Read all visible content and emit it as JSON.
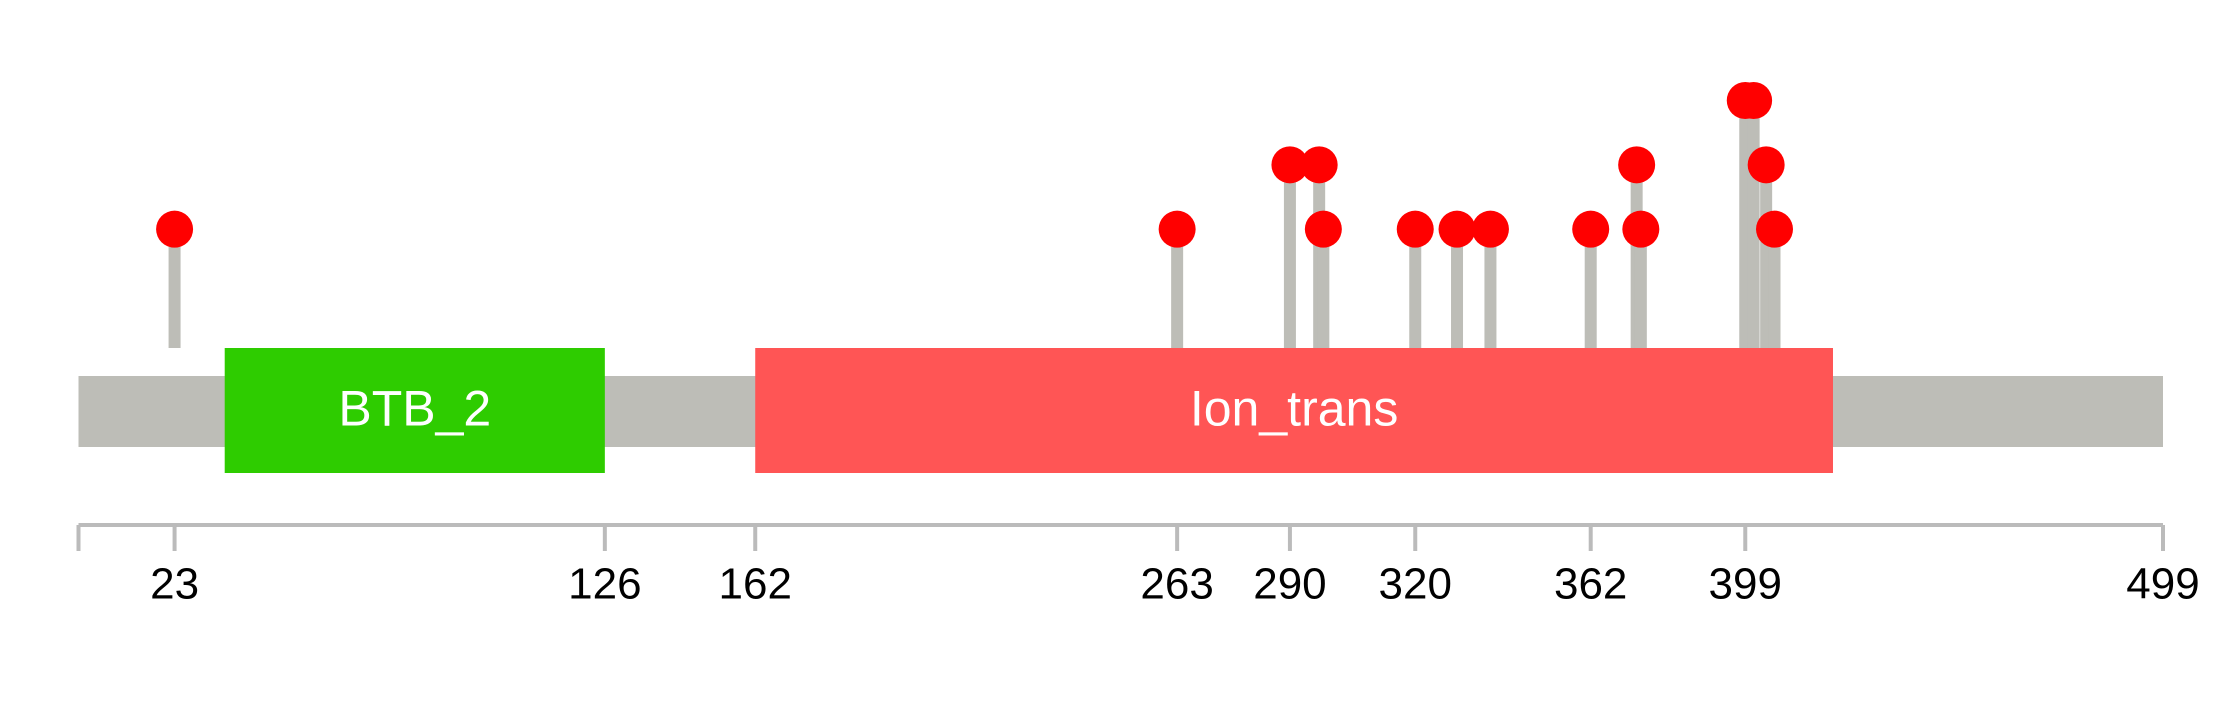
{
  "chart_data": {
    "type": "lollipop",
    "xlim": [
      0,
      499
    ],
    "xticks": [
      23,
      126,
      162,
      263,
      290,
      320,
      362,
      399,
      499
    ],
    "ylim": [
      0,
      3
    ],
    "backbone_color": "#bdbdb7",
    "domains": [
      {
        "name": "BTB_2",
        "start": 35,
        "end": 126,
        "color": "#2ecc00"
      },
      {
        "name": "Ion_trans",
        "start": 162,
        "end": 420,
        "color": "#ff5555"
      }
    ],
    "mutations": {
      "color": "#ff0000",
      "stem_color": "#bdbdb7",
      "x": [
        23,
        263,
        290,
        297,
        298,
        320,
        330,
        338,
        362,
        373,
        374,
        399,
        401,
        404,
        406
      ],
      "values": [
        1,
        1,
        2,
        2,
        1,
        1,
        1,
        1,
        1,
        2,
        1,
        3,
        3,
        2,
        1
      ]
    }
  }
}
